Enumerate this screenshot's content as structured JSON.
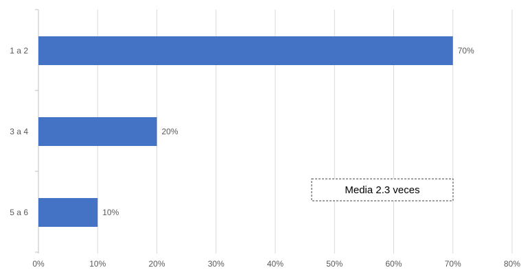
{
  "chart_data": {
    "type": "bar",
    "orientation": "horizontal",
    "categories": [
      "1 a 2",
      "3 a 4",
      "5 a 6"
    ],
    "values": [
      70,
      20,
      10
    ],
    "data_labels": [
      "70%",
      "20%",
      "10%"
    ],
    "x_ticks": [
      "0%",
      "10%",
      "20%",
      "30%",
      "40%",
      "50%",
      "60%",
      "70%",
      "80%"
    ],
    "xlim": [
      0,
      80
    ],
    "grid": true,
    "legend": "none",
    "title": "",
    "xlabel": "",
    "ylabel": "",
    "bar_color": "#4472C4",
    "annotation": "Media 2.3 veces"
  }
}
